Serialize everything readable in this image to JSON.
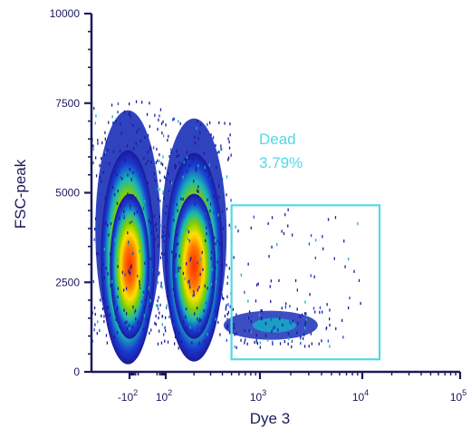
{
  "chart_data": {
    "type": "scatter",
    "subtype": "flow-cytometry density plot",
    "xlabel": "Dye 3",
    "ylabel": "FSC-peak",
    "x_scale": "biexponential",
    "x_ticks": [
      "-10^2",
      "10^2",
      "10^3",
      "10^4",
      "10^5"
    ],
    "y_ticks": [
      "0",
      "2500",
      "5000",
      "7500",
      "10000"
    ],
    "ylim": [
      0,
      10000
    ],
    "grid": false,
    "populations": [
      {
        "x_center": -150,
        "y_center": 3200,
        "y_range": [
          900,
          7600
        ],
        "density": "high"
      },
      {
        "x_center": 200,
        "y_center": 3200,
        "y_range": [
          700,
          7200
        ],
        "density": "high"
      },
      {
        "x_center": 1500,
        "y_center": 1300,
        "y_range": [
          900,
          1900
        ],
        "density": "low"
      }
    ],
    "gates": [
      {
        "name": "Dead",
        "percent": "3.79%",
        "x_range": [
          500,
          15000
        ],
        "y_range": [
          350,
          4650
        ]
      }
    ],
    "colors": {
      "gate": "#55d7e6",
      "axis": "#1a1a5e",
      "density_low": "#1a1a9a",
      "density_high": "#ff2a00"
    }
  },
  "gate_label": {
    "name": "Dead",
    "value": "3.79%"
  }
}
